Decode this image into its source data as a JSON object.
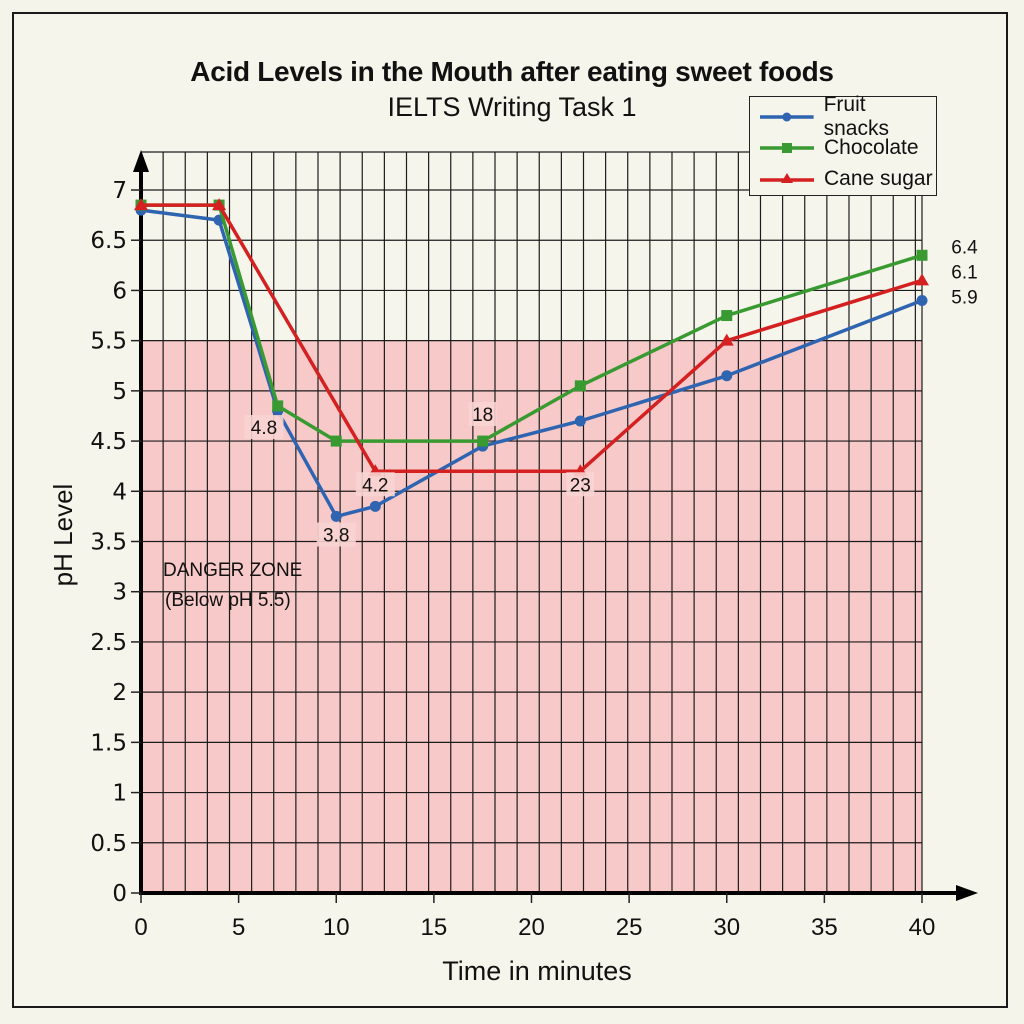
{
  "chart_data": {
    "type": "line",
    "title": "Acid Levels in the Mouth after eating sweet foods",
    "subtitle": "IELTS Writing Task 1",
    "xlabel": "Time in minutes",
    "ylabel": "pH Level",
    "xlim": [
      0,
      40
    ],
    "ylim": [
      0,
      7
    ],
    "x_ticks": [
      0,
      5,
      10,
      15,
      20,
      25,
      30,
      35,
      40
    ],
    "x_tick_labels": [
      "0",
      "5",
      "10",
      "15",
      "20",
      "25",
      "30",
      "35",
      "40"
    ],
    "y_ticks": [
      0,
      0.5,
      1,
      1.5,
      2,
      2.5,
      3,
      3.5,
      4,
      4.5,
      5,
      5.5,
      6,
      6.5,
      7
    ],
    "y_tick_labels": [
      "0",
      "0.5",
      "1",
      "1.5",
      "2",
      "2.5",
      "3",
      "3.5",
      "4",
      "4.5",
      "5",
      "5.5",
      "6",
      "6.5",
      "7"
    ],
    "grid": true,
    "legend_position": "top-right",
    "danger_zone": {
      "below": 5.5,
      "label_line1": "DANGER ZONE",
      "label_line2": "(Below pH 5.5)",
      "color": "#f7c6c6"
    },
    "series": [
      {
        "name": "Fruit snacks",
        "color": "#2f64b0",
        "marker": "circle",
        "x": [
          0,
          4,
          7,
          10,
          12,
          17.5,
          22.5,
          30,
          40
        ],
        "y": [
          6.8,
          6.7,
          4.8,
          3.75,
          3.85,
          4.45,
          4.7,
          5.15,
          5.9
        ]
      },
      {
        "name": "Chocolate",
        "color": "#3a9a32",
        "marker": "square",
        "x": [
          0,
          4,
          7,
          10,
          17.5,
          22.5,
          30,
          40
        ],
        "y": [
          6.85,
          6.85,
          4.85,
          4.5,
          4.5,
          5.05,
          5.75,
          6.35
        ]
      },
      {
        "name": "Cane sugar",
        "color": "#d42020",
        "marker": "triangle",
        "x": [
          0,
          4,
          12,
          22.5,
          30,
          40
        ],
        "y": [
          6.85,
          6.85,
          4.2,
          4.2,
          5.5,
          6.1
        ]
      }
    ],
    "annotations": [
      {
        "text": "4.8",
        "x": 6.3,
        "y": 4.57
      },
      {
        "text": "3.8",
        "x": 10,
        "y": 3.5
      },
      {
        "text": "4.2",
        "x": 12,
        "y": 4.0
      },
      {
        "text": "18",
        "x": 17.5,
        "y": 4.7
      },
      {
        "text": "23",
        "x": 22.5,
        "y": 4.0
      },
      {
        "text": "6.4",
        "x": 41.5,
        "y": 6.37
      },
      {
        "text": "6.1",
        "x": 41.5,
        "y": 6.12
      },
      {
        "text": "5.9",
        "x": 41.5,
        "y": 5.87
      }
    ]
  }
}
